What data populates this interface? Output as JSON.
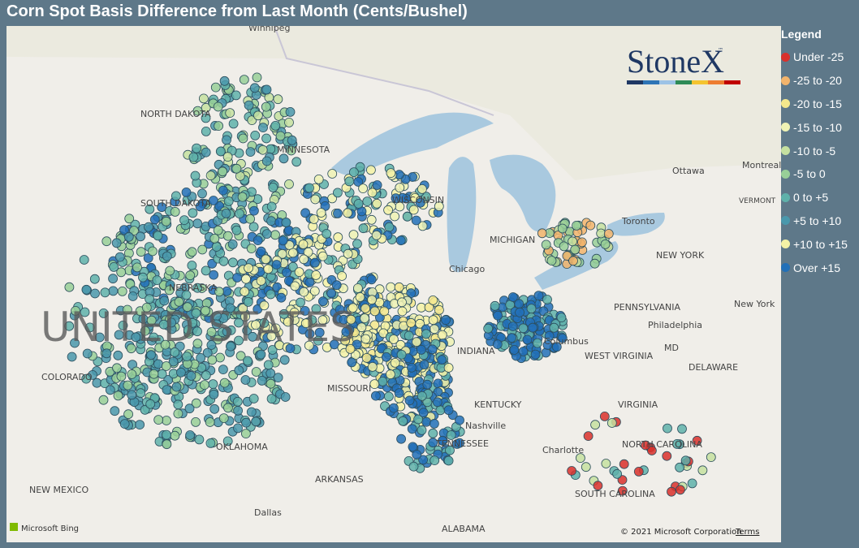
{
  "title": "Corn Spot Basis Difference from Last Month (Cents/Bushel)",
  "legend": {
    "title": "Legend",
    "items": [
      {
        "label": "Under -25",
        "color": "#d9302c"
      },
      {
        "label": "-25 to -20",
        "color": "#f2b46c"
      },
      {
        "label": "-20 to -15",
        "color": "#f4e88c"
      },
      {
        "label": "-15 to -10",
        "color": "#eef2b4"
      },
      {
        "label": "-10 to -5",
        "color": "#c5e0a0"
      },
      {
        "label": "-5 to 0",
        "color": "#98cf98"
      },
      {
        "label": "0 to +5",
        "color": "#5fb1aa"
      },
      {
        "label": "+5 to +10",
        "color": "#4a98ac"
      },
      {
        "label": "+10 to +15",
        "color": "#f4f2a6"
      },
      {
        "label": "Over +15",
        "color": "#2270b8"
      }
    ]
  },
  "logo": {
    "name": "StoneX",
    "mark": "™"
  },
  "map_labels": [
    "Winnipeg",
    "NORTH DAKOTA",
    "MINNESOTA",
    "SOUTH DAKOTA",
    "NEBRASKA",
    "UNITED STATES",
    "COLORADO",
    "MISSOURI",
    "OKLAHOMA",
    "NEW MEXICO",
    "ARKANSAS",
    "Dallas",
    "TENNESSEE",
    "Nashville",
    "KENTUCKY",
    "INDIANA",
    "Chicago",
    "MICHIGAN",
    "WISCONSIN",
    "Ottawa",
    "Montreal",
    "Toronto",
    "NEW YORK",
    "PENNSYLVANIA",
    "Philadelphia",
    "New York",
    "Columbus",
    "WEST VIRGINIA",
    "VIRGINIA",
    "MD",
    "DELAWARE",
    "NORTH CAROLINA",
    "SOUTH CAROLINA",
    "Charlotte",
    "ALABAMA",
    "VERMONT"
  ],
  "attribution": {
    "provider": "Microsoft Bing",
    "copyright": "© 2021 Microsoft Corporation",
    "terms": "Terms"
  }
}
